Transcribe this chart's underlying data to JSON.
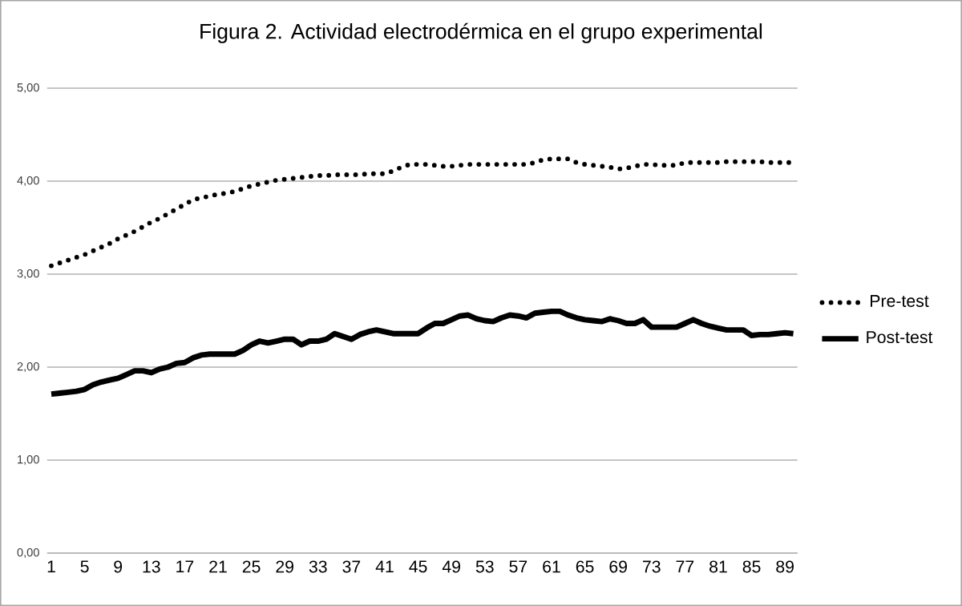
{
  "chart_data": {
    "type": "line",
    "title": "Figura 2. Actividad electrodérmica en el grupo experimental",
    "categories": [
      "1",
      null,
      null,
      null,
      "5",
      null,
      null,
      null,
      "9",
      null,
      null,
      null,
      "13",
      null,
      null,
      null,
      "17",
      null,
      null,
      null,
      "21",
      null,
      null,
      null,
      "25",
      null,
      null,
      null,
      "29",
      null,
      null,
      null,
      "33",
      null,
      null,
      null,
      "37",
      null,
      null,
      null,
      "41",
      null,
      null,
      null,
      "45",
      null,
      null,
      null,
      "49",
      null,
      null,
      null,
      "53",
      null,
      null,
      null,
      "57",
      null,
      null,
      null,
      "61",
      null,
      null,
      null,
      "65",
      null,
      null,
      null,
      "69",
      null,
      null,
      null,
      "73",
      null,
      null,
      null,
      "77",
      null,
      null,
      null,
      "81",
      null,
      null,
      null,
      "85",
      null,
      null,
      null,
      "89",
      null
    ],
    "series": [
      {
        "name": "Pre-test",
        "color": "#000000",
        "line_style": "dotted",
        "values": [
          3.09,
          3.12,
          3.15,
          3.18,
          3.21,
          3.25,
          3.29,
          3.33,
          3.38,
          3.42,
          3.46,
          3.51,
          3.56,
          3.6,
          3.65,
          3.7,
          3.75,
          3.8,
          3.82,
          3.84,
          3.86,
          3.87,
          3.89,
          3.92,
          3.95,
          3.97,
          3.99,
          4.01,
          4.02,
          4.03,
          4.04,
          4.05,
          4.06,
          4.06,
          4.07,
          4.07,
          4.07,
          4.07,
          4.08,
          4.08,
          4.08,
          4.11,
          4.15,
          4.18,
          4.18,
          4.18,
          4.17,
          4.16,
          4.16,
          4.17,
          4.18,
          4.18,
          4.18,
          4.18,
          4.18,
          4.18,
          4.18,
          4.18,
          4.2,
          4.23,
          4.24,
          4.24,
          4.24,
          4.2,
          4.18,
          4.17,
          4.16,
          4.15,
          4.13,
          4.14,
          4.16,
          4.18,
          4.18,
          4.17,
          4.17,
          4.17,
          4.2,
          4.2,
          4.2,
          4.2,
          4.2,
          4.21,
          4.21,
          4.21,
          4.21,
          4.21,
          4.2,
          4.2,
          4.2,
          4.2
        ]
      },
      {
        "name": "Post-test",
        "color": "#000000",
        "line_style": "solid",
        "values": [
          1.71,
          1.72,
          1.73,
          1.74,
          1.76,
          1.81,
          1.84,
          1.86,
          1.88,
          1.92,
          1.96,
          1.96,
          1.94,
          1.98,
          2.0,
          2.04,
          2.05,
          2.1,
          2.13,
          2.14,
          2.14,
          2.14,
          2.14,
          2.18,
          2.24,
          2.28,
          2.26,
          2.28,
          2.3,
          2.3,
          2.24,
          2.28,
          2.28,
          2.3,
          2.36,
          2.33,
          2.3,
          2.35,
          2.38,
          2.4,
          2.38,
          2.36,
          2.36,
          2.36,
          2.36,
          2.42,
          2.47,
          2.47,
          2.51,
          2.55,
          2.56,
          2.52,
          2.5,
          2.49,
          2.53,
          2.56,
          2.55,
          2.53,
          2.58,
          2.59,
          2.6,
          2.6,
          2.56,
          2.53,
          2.51,
          2.5,
          2.49,
          2.52,
          2.5,
          2.47,
          2.47,
          2.51,
          2.43,
          2.43,
          2.43,
          2.43,
          2.47,
          2.51,
          2.47,
          2.44,
          2.42,
          2.4,
          2.4,
          2.4,
          2.34,
          2.35,
          2.35,
          2.36,
          2.37,
          2.36
        ]
      }
    ],
    "ylim": [
      0,
      5
    ],
    "yticks": [
      {
        "value": 0,
        "label": "0,00"
      },
      {
        "value": 1,
        "label": "1,00"
      },
      {
        "value": 2,
        "label": "2,00"
      },
      {
        "value": 3,
        "label": "3,00"
      },
      {
        "value": 4,
        "label": "4,00"
      },
      {
        "value": 5,
        "label": "5,00"
      }
    ],
    "grid": "y",
    "legend": "right"
  }
}
